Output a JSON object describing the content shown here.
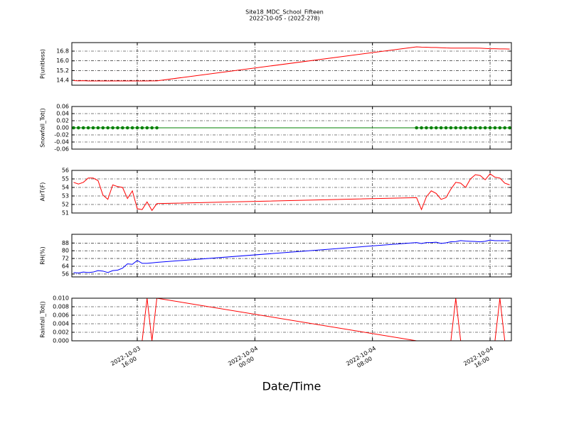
{
  "title": "Site18_MDC_School_Fifteen",
  "subtitle": "2022-10-05 - (2022-278)",
  "xlabel": "Date/Time",
  "chart_data": [
    {
      "type": "line",
      "ylabel": "P(unitless)",
      "color": "#ff0000",
      "grid": true,
      "x": [
        "2022-10-03 11:40",
        "2022-10-03 12:00",
        "2022-10-03 12:20",
        "2022-10-03 12:40",
        "2022-10-03 13:00",
        "2022-10-03 13:20",
        "2022-10-03 13:40",
        "2022-10-03 14:00",
        "2022-10-03 14:20",
        "2022-10-03 14:40",
        "2022-10-03 15:00",
        "2022-10-03 15:20",
        "2022-10-03 15:40",
        "2022-10-03 16:00",
        "2022-10-03 16:20",
        "2022-10-03 16:40",
        "2022-10-03 17:00",
        "2022-10-03 17:20",
        "2022-10-04 11:00",
        "2022-10-04 11:20",
        "2022-10-04 11:40",
        "2022-10-04 12:00",
        "2022-10-04 12:20",
        "2022-10-04 12:40",
        "2022-10-04 13:00",
        "2022-10-04 13:20",
        "2022-10-04 13:40",
        "2022-10-04 14:00",
        "2022-10-04 14:20",
        "2022-10-04 14:40",
        "2022-10-04 15:00",
        "2022-10-04 15:20",
        "2022-10-04 15:40",
        "2022-10-04 16:00",
        "2022-10-04 16:20",
        "2022-10-04 16:40",
        "2022-10-04 17:00",
        "2022-10-04 17:20"
      ],
      "values": [
        14.38,
        14.36,
        14.37,
        14.35,
        14.35,
        14.35,
        14.35,
        14.35,
        14.35,
        14.35,
        14.35,
        14.35,
        14.35,
        14.35,
        14.35,
        14.35,
        14.36,
        14.36,
        17.15,
        17.13,
        17.12,
        17.1,
        17.1,
        17.08,
        17.06,
        17.05,
        17.05,
        17.05,
        17.05,
        17.05,
        17.05,
        17.04,
        17.02,
        17.0,
        17.0,
        16.98,
        16.98,
        16.97
      ],
      "xlim": [
        "2022-10-03 11:33",
        "2022-10-04 17:27"
      ],
      "xticks": [
        {
          "value": "2022-10-03 16:00",
          "label": "2022-10-03\n16:00"
        },
        {
          "value": "2022-10-04 00:00",
          "label": "2022-10-04\n00:00"
        },
        {
          "value": "2022-10-04 08:00",
          "label": "2022-10-04\n08:00"
        },
        {
          "value": "2022-10-04 16:00",
          "label": "2022-10-04\n16:00"
        }
      ],
      "ylim": [
        14.0,
        17.5
      ],
      "yticks": [
        14.4,
        15.2,
        {
          "value": 16.0,
          "label": "16.0"
        },
        16.8
      ]
    },
    {
      "type": "line",
      "ylabel": "Snowfall_Tot()",
      "color": "#008000",
      "markers": true,
      "grid": true,
      "x": [
        "2022-10-03 11:40",
        "2022-10-03 12:00",
        "2022-10-03 12:20",
        "2022-10-03 12:40",
        "2022-10-03 13:00",
        "2022-10-03 13:20",
        "2022-10-03 13:40",
        "2022-10-03 14:00",
        "2022-10-03 14:20",
        "2022-10-03 14:40",
        "2022-10-03 15:00",
        "2022-10-03 15:20",
        "2022-10-03 15:40",
        "2022-10-03 16:00",
        "2022-10-03 16:20",
        "2022-10-03 16:40",
        "2022-10-03 17:00",
        "2022-10-03 17:20",
        "2022-10-04 11:00",
        "2022-10-04 11:20",
        "2022-10-04 11:40",
        "2022-10-04 12:00",
        "2022-10-04 12:20",
        "2022-10-04 12:40",
        "2022-10-04 13:00",
        "2022-10-04 13:20",
        "2022-10-04 13:40",
        "2022-10-04 14:00",
        "2022-10-04 14:20",
        "2022-10-04 14:40",
        "2022-10-04 15:00",
        "2022-10-04 15:20",
        "2022-10-04 15:40",
        "2022-10-04 16:00",
        "2022-10-04 16:20",
        "2022-10-04 16:40",
        "2022-10-04 17:00",
        "2022-10-04 17:20"
      ],
      "values": [
        0,
        0,
        0,
        0,
        0,
        0,
        0,
        0,
        0,
        0,
        0,
        0,
        0,
        0,
        0,
        0,
        0,
        0,
        0,
        0,
        0,
        0,
        0,
        0,
        0,
        0,
        0,
        0,
        0,
        0,
        0,
        0,
        0,
        0,
        0,
        0,
        0,
        0
      ],
      "xlim": [
        "2022-10-03 11:33",
        "2022-10-04 17:27"
      ],
      "xticks": [
        {
          "value": "2022-10-03 16:00",
          "label": "2022-10-03\n16:00"
        },
        {
          "value": "2022-10-04 00:00",
          "label": "2022-10-04\n00:00"
        },
        {
          "value": "2022-10-04 08:00",
          "label": "2022-10-04\n08:00"
        },
        {
          "value": "2022-10-04 16:00",
          "label": "2022-10-04\n16:00"
        }
      ],
      "ylim": [
        -0.06,
        0.06
      ],
      "yticks": [
        -0.06,
        -0.04,
        -0.02,
        {
          "value": 0,
          "label": "0.00"
        },
        0.02,
        0.04,
        0.06
      ]
    },
    {
      "type": "line",
      "ylabel": "AirT(F)",
      "color": "#ff0000",
      "grid": true,
      "x": [
        "2022-10-03 11:40",
        "2022-10-03 12:00",
        "2022-10-03 12:20",
        "2022-10-03 12:40",
        "2022-10-03 13:00",
        "2022-10-03 13:20",
        "2022-10-03 13:40",
        "2022-10-03 14:00",
        "2022-10-03 14:20",
        "2022-10-03 14:40",
        "2022-10-03 15:00",
        "2022-10-03 15:20",
        "2022-10-03 15:40",
        "2022-10-03 16:00",
        "2022-10-03 16:20",
        "2022-10-03 16:40",
        "2022-10-03 17:00",
        "2022-10-03 17:20",
        "2022-10-04 11:00",
        "2022-10-04 11:20",
        "2022-10-04 11:40",
        "2022-10-04 12:00",
        "2022-10-04 12:20",
        "2022-10-04 12:40",
        "2022-10-04 13:00",
        "2022-10-04 13:20",
        "2022-10-04 13:40",
        "2022-10-04 14:00",
        "2022-10-04 14:20",
        "2022-10-04 14:40",
        "2022-10-04 15:00",
        "2022-10-04 15:20",
        "2022-10-04 15:40",
        "2022-10-04 16:00",
        "2022-10-04 16:20",
        "2022-10-04 16:40",
        "2022-10-04 17:00",
        "2022-10-04 17:20"
      ],
      "values": [
        54.6,
        54.4,
        54.6,
        55.1,
        55.1,
        54.8,
        53.1,
        52.6,
        54.3,
        54.1,
        54.0,
        52.7,
        53.6,
        51.5,
        51.4,
        52.3,
        51.3,
        52.1,
        52.8,
        51.4,
        52.9,
        53.6,
        53.3,
        52.6,
        52.8,
        53.8,
        54.6,
        54.5,
        54.0,
        55.0,
        55.5,
        55.4,
        54.9,
        55.6,
        55.2,
        55.1,
        54.5,
        54.3
      ],
      "xlim": [
        "2022-10-03 11:33",
        "2022-10-04 17:27"
      ],
      "xticks": [
        {
          "value": "2022-10-03 16:00",
          "label": "2022-10-03\n16:00"
        },
        {
          "value": "2022-10-04 00:00",
          "label": "2022-10-04\n00:00"
        },
        {
          "value": "2022-10-04 08:00",
          "label": "2022-10-04\n08:00"
        },
        {
          "value": "2022-10-04 16:00",
          "label": "2022-10-04\n16:00"
        }
      ],
      "ylim": [
        51,
        56
      ],
      "yticks": [
        51,
        52,
        53,
        54,
        55,
        56
      ]
    },
    {
      "type": "line",
      "ylabel": "RH(%)",
      "color": "#0000ff",
      "grid": true,
      "x": [
        "2022-10-03 11:40",
        "2022-10-03 12:00",
        "2022-10-03 12:20",
        "2022-10-03 12:40",
        "2022-10-03 13:00",
        "2022-10-03 13:20",
        "2022-10-03 13:40",
        "2022-10-03 14:00",
        "2022-10-03 14:20",
        "2022-10-03 14:40",
        "2022-10-03 15:00",
        "2022-10-03 15:20",
        "2022-10-03 15:40",
        "2022-10-03 16:00",
        "2022-10-03 16:20",
        "2022-10-03 16:40",
        "2022-10-03 17:00",
        "2022-10-03 17:20",
        "2022-10-04 11:00",
        "2022-10-04 11:20",
        "2022-10-04 11:40",
        "2022-10-04 12:00",
        "2022-10-04 12:20",
        "2022-10-04 12:40",
        "2022-10-04 13:00",
        "2022-10-04 13:20",
        "2022-10-04 13:40",
        "2022-10-04 14:00",
        "2022-10-04 14:20",
        "2022-10-04 14:40",
        "2022-10-04 15:00",
        "2022-10-04 15:20",
        "2022-10-04 15:40",
        "2022-10-04 16:00",
        "2022-10-04 16:20",
        "2022-10-04 16:40",
        "2022-10-04 17:00",
        "2022-10-04 17:20"
      ],
      "values": [
        57.5,
        57,
        58,
        57.5,
        58,
        59.5,
        59,
        57.5,
        59.5,
        60,
        62,
        66.5,
        66,
        70,
        67,
        67,
        67.5,
        68,
        88.5,
        87.5,
        88.5,
        88.5,
        88.8,
        87.6,
        88.2,
        89.3,
        89.5,
        90.5,
        90,
        89.8,
        89.6,
        89.2,
        89.8,
        91,
        90.4,
        90.4,
        90.4,
        90.3
      ],
      "xlim": [
        "2022-10-03 11:33",
        "2022-10-04 17:27"
      ],
      "xticks": [
        {
          "value": "2022-10-03 16:00",
          "label": "2022-10-03\n16:00"
        },
        {
          "value": "2022-10-04 00:00",
          "label": "2022-10-04\n00:00"
        },
        {
          "value": "2022-10-04 08:00",
          "label": "2022-10-04\n08:00"
        },
        {
          "value": "2022-10-04 16:00",
          "label": "2022-10-04\n16:00"
        }
      ],
      "ylim": [
        53,
        97
      ],
      "yticks": [
        56,
        64,
        72,
        80,
        88
      ]
    },
    {
      "type": "line",
      "ylabel": "Rainfall_Tot()",
      "color": "#ff0000",
      "grid": true,
      "x": [
        "2022-10-03 11:40",
        "2022-10-03 12:00",
        "2022-10-03 12:20",
        "2022-10-03 12:40",
        "2022-10-03 13:00",
        "2022-10-03 13:20",
        "2022-10-03 13:40",
        "2022-10-03 14:00",
        "2022-10-03 14:20",
        "2022-10-03 14:40",
        "2022-10-03 15:00",
        "2022-10-03 15:20",
        "2022-10-03 15:40",
        "2022-10-03 16:00",
        "2022-10-03 16:20",
        "2022-10-03 16:40",
        "2022-10-03 17:00",
        "2022-10-03 17:20",
        "2022-10-04 11:00",
        "2022-10-04 11:20",
        "2022-10-04 11:40",
        "2022-10-04 12:00",
        "2022-10-04 12:20",
        "2022-10-04 12:40",
        "2022-10-04 13:00",
        "2022-10-04 13:20",
        "2022-10-04 13:40",
        "2022-10-04 14:00",
        "2022-10-04 14:20",
        "2022-10-04 14:40",
        "2022-10-04 15:00",
        "2022-10-04 15:20",
        "2022-10-04 15:40",
        "2022-10-04 16:00",
        "2022-10-04 16:20",
        "2022-10-04 16:40",
        "2022-10-04 17:00",
        "2022-10-04 17:20"
      ],
      "values": [
        0,
        0,
        0,
        0,
        0,
        0,
        0,
        0,
        0,
        0,
        0,
        0,
        0,
        0,
        0,
        0.01,
        0,
        0.01,
        0,
        0,
        0,
        0,
        0,
        0,
        0,
        0,
        0.01,
        0,
        0,
        0,
        0,
        0,
        0,
        0,
        0,
        0.01,
        0,
        0
      ],
      "xlim": [
        "2022-10-03 11:33",
        "2022-10-04 17:27"
      ],
      "xticks": [
        {
          "value": "2022-10-03 16:00",
          "label": "2022-10-03\n16:00"
        },
        {
          "value": "2022-10-04 00:00",
          "label": "2022-10-04\n00:00"
        },
        {
          "value": "2022-10-04 08:00",
          "label": "2022-10-04\n08:00"
        },
        {
          "value": "2022-10-04 16:00",
          "label": "2022-10-04\n16:00"
        }
      ],
      "ylim": [
        0,
        0.01
      ],
      "yticks": [
        {
          "value": 0,
          "label": "0.000"
        },
        0.002,
        0.004,
        0.006,
        0.008,
        {
          "value": 0.01,
          "label": "0.010"
        }
      ]
    }
  ]
}
